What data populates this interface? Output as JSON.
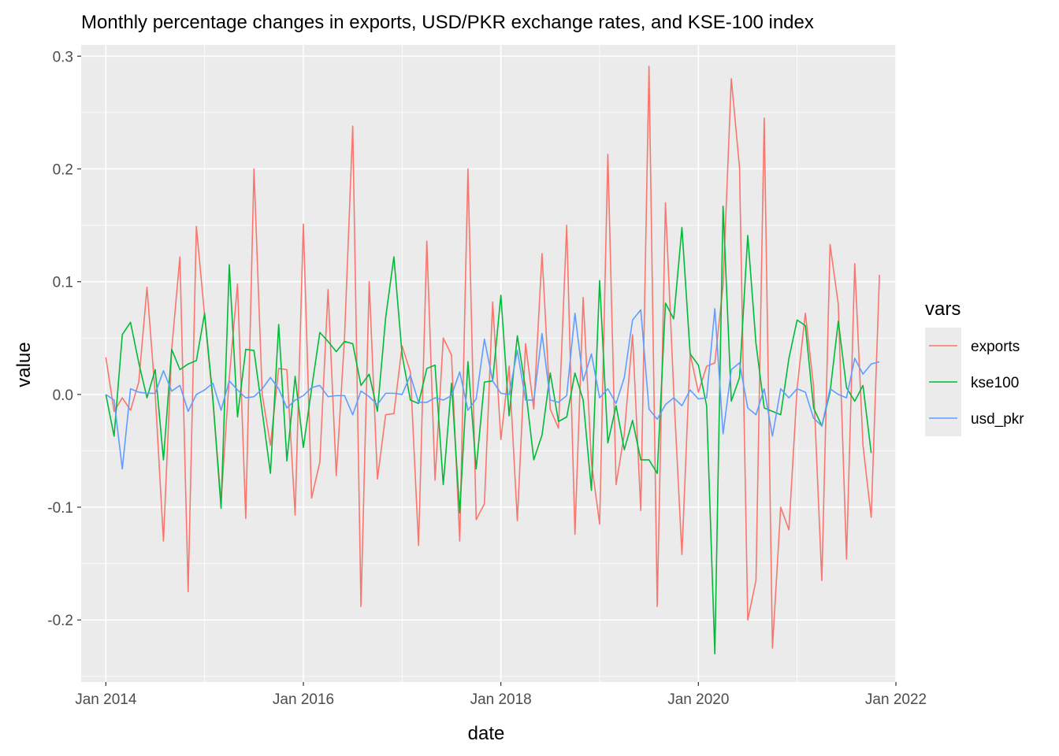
{
  "chart_data": {
    "type": "line",
    "title": "Monthly percentage changes in exports, USD/PKR exchange rates, and KSE-100 index",
    "xlabel": "date",
    "ylabel": "value",
    "x_start": "Jan 2014",
    "x_end": "Sep 2021",
    "x_frequency": "monthly",
    "xlim": [
      "2013-10",
      "2022-01"
    ],
    "ylim": [
      -0.255,
      0.31
    ],
    "x_ticks": [
      {
        "label": "Jan 2014",
        "date": "2014-01"
      },
      {
        "label": "Jan 2016",
        "date": "2016-01"
      },
      {
        "label": "Jan 2018",
        "date": "2018-01"
      },
      {
        "label": "Jan 2020",
        "date": "2020-01"
      },
      {
        "label": "Jan 2022",
        "date": "2022-01"
      }
    ],
    "y_ticks": [
      {
        "label": "-0.2",
        "value": -0.2
      },
      {
        "label": "-0.1",
        "value": -0.1
      },
      {
        "label": "0.0",
        "value": 0.0
      },
      {
        "label": "0.1",
        "value": 0.1
      },
      {
        "label": "0.2",
        "value": 0.2
      },
      {
        "label": "0.3",
        "value": 0.3
      }
    ],
    "grid": true,
    "legend": {
      "title": "vars",
      "position": "right"
    },
    "series": [
      {
        "name": "exports",
        "color": "#F8766D",
        "values": [
          0.033,
          -0.015,
          -0.003,
          -0.014,
          0.011,
          0.095,
          0.0,
          -0.13,
          0.04,
          0.122,
          -0.175,
          0.149,
          0.07,
          -0.005,
          -0.095,
          0.015,
          0.098,
          -0.11,
          0.2,
          0.0,
          -0.045,
          0.023,
          0.022,
          -0.107,
          0.151,
          -0.092,
          -0.06,
          0.093,
          -0.072,
          0.05,
          0.238,
          -0.188,
          0.1,
          -0.075,
          -0.018,
          -0.017,
          0.043,
          0.02,
          -0.134,
          0.136,
          -0.076,
          0.05,
          0.035,
          -0.13,
          0.2,
          -0.111,
          -0.097,
          0.082,
          -0.04,
          0.025,
          -0.112,
          0.045,
          -0.013,
          0.125,
          -0.013,
          -0.03,
          0.15,
          -0.124,
          0.086,
          -0.06,
          -0.115,
          0.213,
          -0.08,
          -0.035,
          0.053,
          -0.103,
          0.291,
          -0.188,
          0.17,
          0.003,
          -0.142,
          0.036,
          0.002,
          0.025,
          0.028,
          0.097,
          0.28,
          0.201,
          -0.2,
          -0.165,
          0.245,
          -0.225,
          -0.1,
          -0.12,
          0.006,
          0.072,
          0.007,
          -0.165,
          0.133,
          0.08,
          -0.146,
          0.116,
          -0.045,
          -0.109,
          0.106
        ]
      },
      {
        "name": "kse100",
        "color": "#00BA38",
        "values": [
          0.0,
          -0.037,
          0.053,
          0.064,
          0.028,
          -0.003,
          0.022,
          -0.058,
          0.04,
          0.022,
          0.027,
          0.03,
          0.072,
          -0.003,
          -0.101,
          0.115,
          -0.02,
          0.04,
          0.039,
          -0.015,
          -0.07,
          0.062,
          -0.059,
          0.016,
          -0.047,
          0.005,
          0.055,
          0.047,
          0.038,
          0.047,
          0.045,
          0.008,
          0.018,
          -0.015,
          0.068,
          0.122,
          0.035,
          -0.005,
          -0.008,
          0.023,
          0.026,
          -0.08,
          0.01,
          -0.105,
          0.029,
          -0.066,
          0.011,
          0.012,
          0.088,
          -0.019,
          0.052,
          0.005,
          -0.058,
          -0.036,
          0.019,
          -0.024,
          -0.02,
          0.019,
          -0.005,
          -0.085,
          0.101,
          -0.043,
          -0.01,
          -0.049,
          -0.023,
          -0.058,
          -0.058,
          -0.07,
          0.081,
          0.067,
          0.148,
          0.036,
          0.026,
          -0.01,
          -0.23,
          0.167,
          -0.006,
          0.015,
          0.141,
          0.045,
          -0.012,
          -0.015,
          -0.018,
          0.032,
          0.066,
          0.061,
          -0.012,
          -0.028,
          0.002,
          0.065,
          0.006,
          -0.006,
          0.008,
          -0.052
        ]
      },
      {
        "name": "usd_pkr",
        "color": "#619CFF",
        "values": [
          0.0,
          -0.005,
          -0.066,
          0.005,
          0.002,
          0.001,
          0.001,
          0.021,
          0.003,
          0.008,
          -0.015,
          0.0,
          0.004,
          0.01,
          -0.014,
          0.012,
          0.004,
          -0.003,
          -0.002,
          0.005,
          0.015,
          0.005,
          -0.012,
          -0.005,
          -0.001,
          0.006,
          0.008,
          -0.002,
          -0.001,
          -0.001,
          -0.018,
          0.003,
          -0.002,
          -0.009,
          0.001,
          0.001,
          0.0,
          0.017,
          -0.007,
          -0.007,
          -0.003,
          -0.005,
          -0.001,
          0.02,
          -0.014,
          -0.004,
          0.049,
          0.012,
          0.001,
          0.0,
          0.039,
          -0.005,
          -0.005,
          0.054,
          -0.005,
          -0.007,
          -0.001,
          0.072,
          0.012,
          0.036,
          -0.003,
          0.005,
          -0.008,
          0.015,
          0.066,
          0.075,
          -0.013,
          -0.022,
          -0.009,
          -0.003,
          -0.01,
          0.004,
          -0.004,
          -0.003,
          0.076,
          -0.035,
          0.022,
          0.028,
          -0.012,
          -0.018,
          0.005,
          -0.037,
          0.005,
          -0.003,
          0.005,
          0.002,
          -0.021,
          -0.028,
          0.005,
          0.0,
          -0.003,
          0.032,
          0.018,
          0.027,
          0.029
        ]
      }
    ]
  }
}
